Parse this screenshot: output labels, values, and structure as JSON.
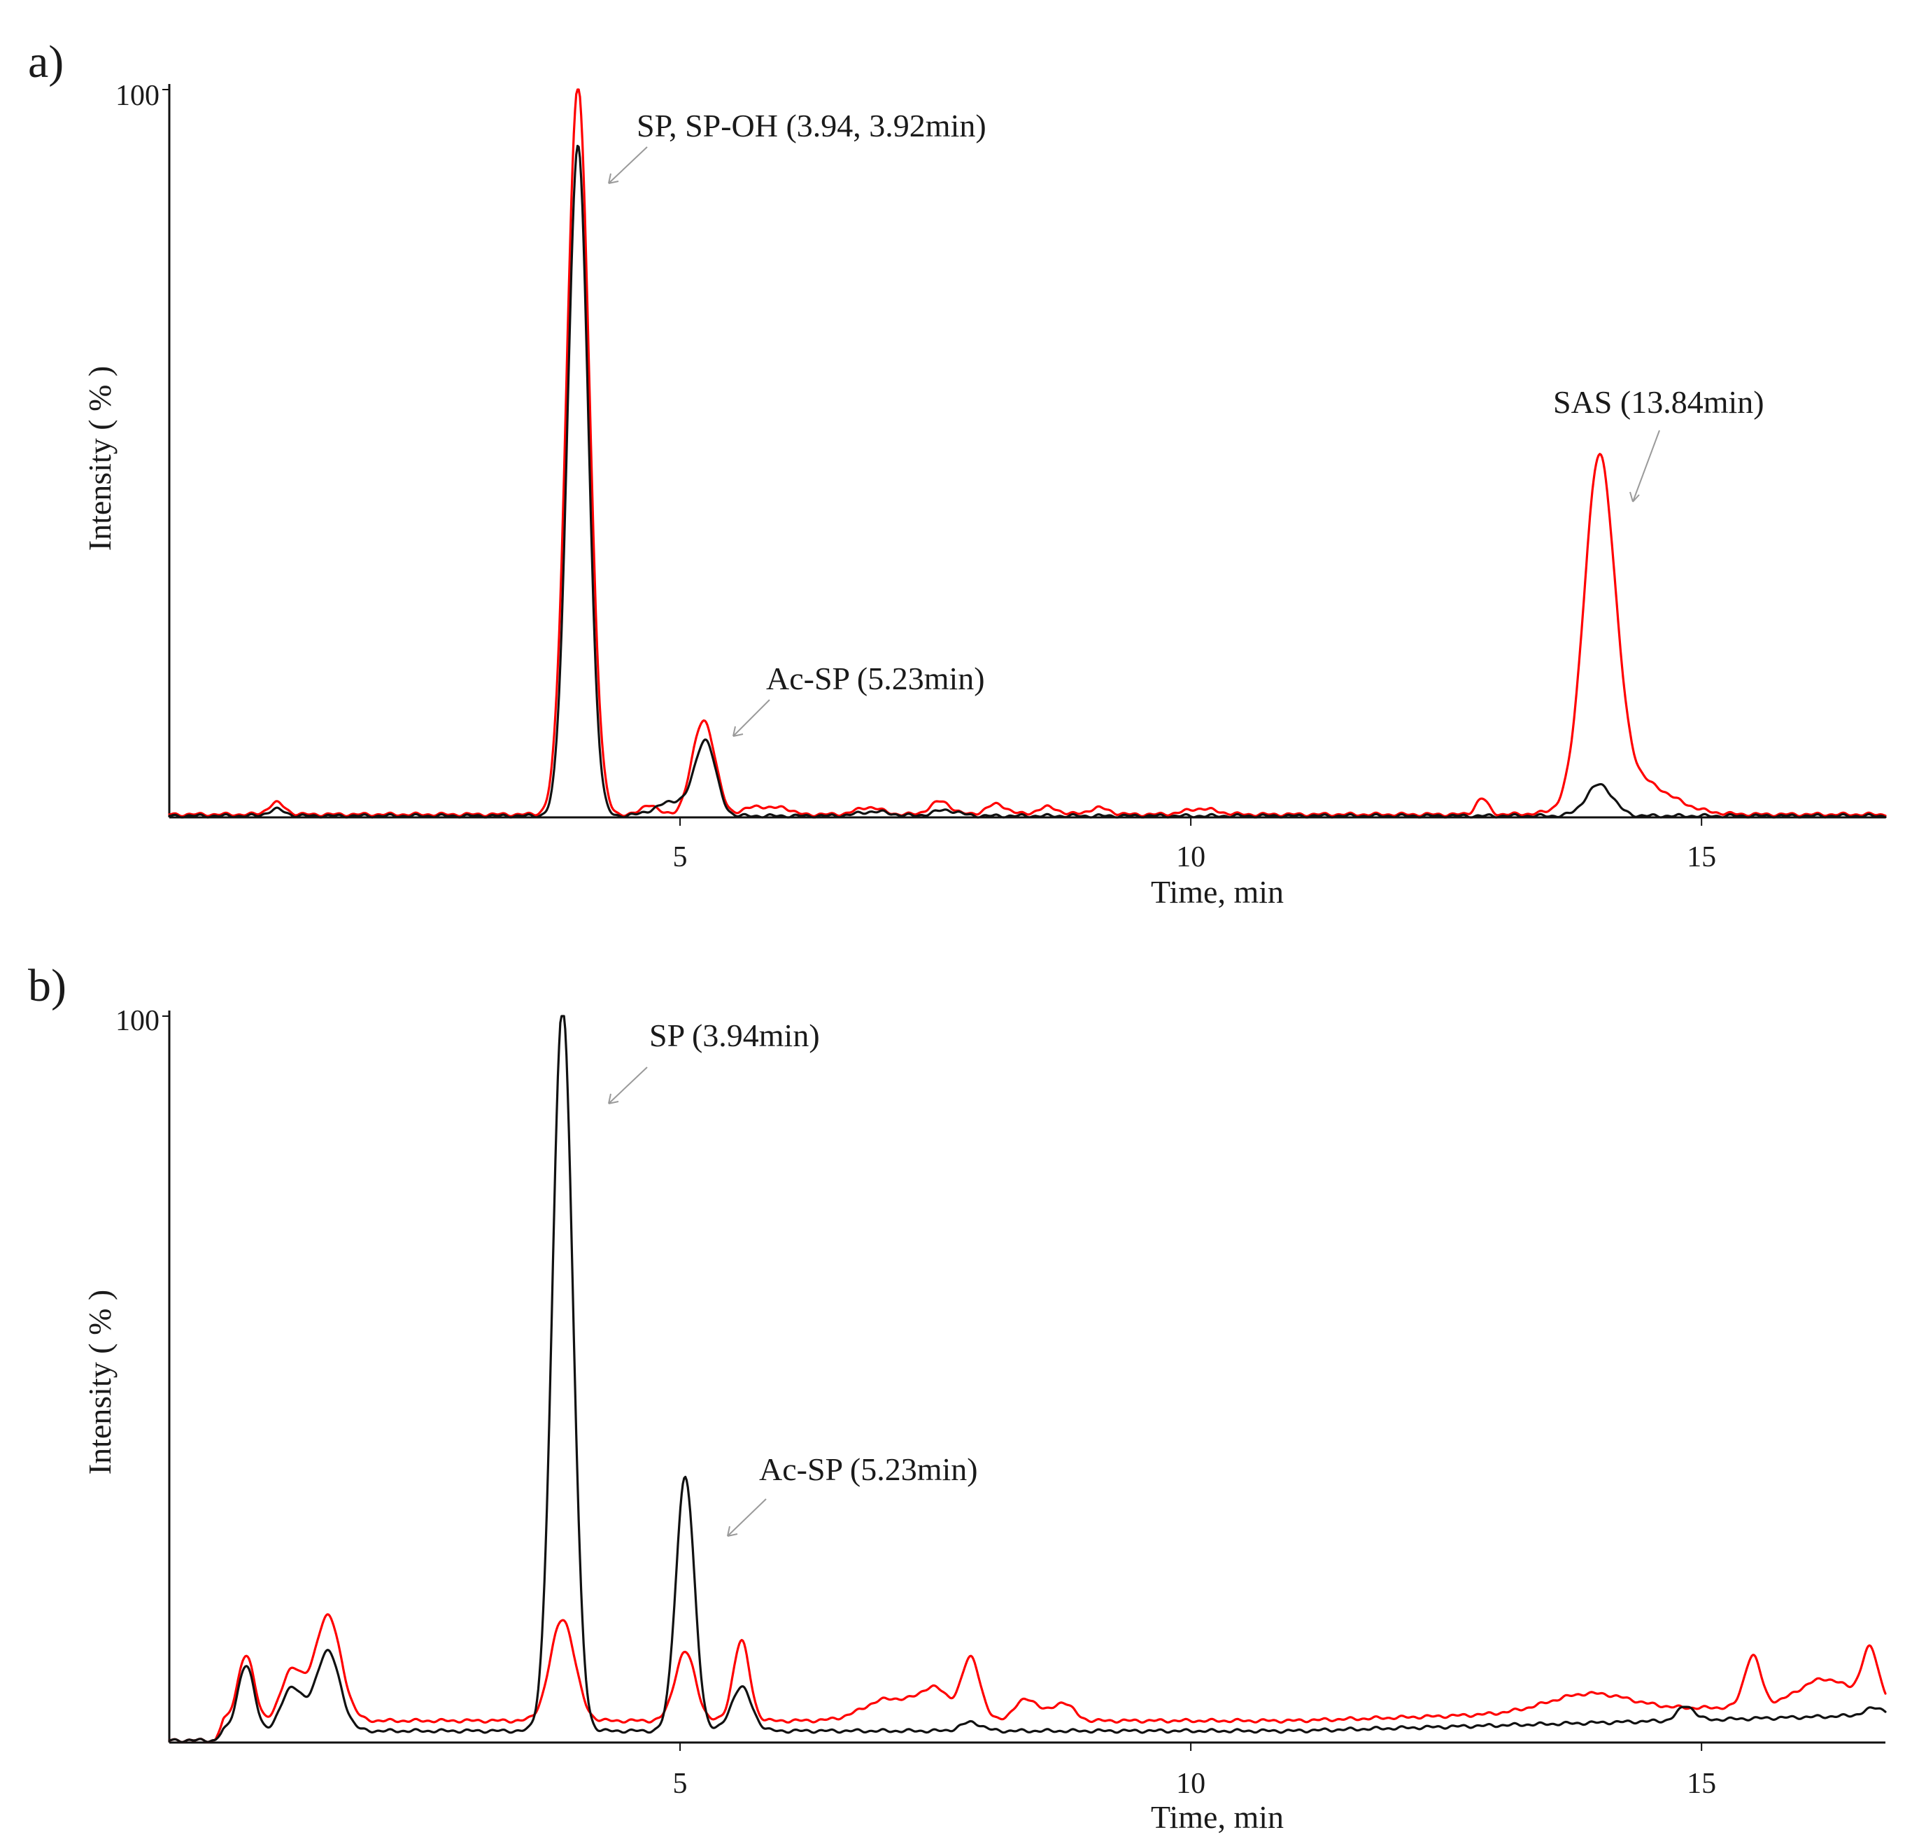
{
  "figure_colors": {
    "red_trace": "#ff0000",
    "black_trace": "#111111",
    "arrow": "#9a9a9a"
  },
  "chart_data": [
    {
      "panel": "a)",
      "type": "line",
      "xlabel": "Time, min",
      "ylabel": "Intensity ( % )",
      "xlim": [
        0,
        16.8
      ],
      "ylim": [
        0,
        100
      ],
      "xticks": [
        5,
        10,
        15
      ],
      "ytick_label": "100",
      "grid": false,
      "series": [
        {
          "color": "#ff0000",
          "peaks": [
            {
              "x": 1.05,
              "h": 1.6,
              "w": 0.08
            },
            {
              "x": 4.0,
              "h": 100,
              "w": 0.11
            },
            {
              "x": 4.7,
              "h": 1.4,
              "w": 0.07
            },
            {
              "x": 5.23,
              "h": 13,
              "w": 0.11
            },
            {
              "x": 5.75,
              "h": 1.2,
              "w": 0.1
            },
            {
              "x": 6.0,
              "h": 1.0,
              "w": 0.08
            },
            {
              "x": 6.85,
              "h": 1.0,
              "w": 0.12
            },
            {
              "x": 7.55,
              "h": 1.8,
              "w": 0.1
            },
            {
              "x": 8.1,
              "h": 1.4,
              "w": 0.1
            },
            {
              "x": 8.6,
              "h": 1.0,
              "w": 0.1
            },
            {
              "x": 9.1,
              "h": 0.9,
              "w": 0.1
            },
            {
              "x": 10.1,
              "h": 0.8,
              "w": 0.15
            },
            {
              "x": 12.85,
              "h": 2.2,
              "w": 0.06
            },
            {
              "x": 14.0,
              "h": 46,
              "w": 0.15
            },
            {
              "x": 14.3,
              "h": 5,
              "w": 0.35
            }
          ],
          "baseline": 0.4
        },
        {
          "color": "#111111",
          "peaks": [
            {
              "x": 1.05,
              "h": 0.9,
              "w": 0.08
            },
            {
              "x": 4.0,
              "h": 92,
              "w": 0.1
            },
            {
              "x": 4.95,
              "h": 2,
              "w": 0.18
            },
            {
              "x": 5.25,
              "h": 10,
              "w": 0.1
            },
            {
              "x": 6.9,
              "h": 0.6,
              "w": 0.15
            },
            {
              "x": 7.6,
              "h": 0.8,
              "w": 0.12
            },
            {
              "x": 14.0,
              "h": 4.3,
              "w": 0.13
            }
          ],
          "baseline": 0.2
        }
      ],
      "annotations": [
        {
          "text": "SP, SP-OH (3.94, 3.92min)",
          "x": 4.15,
          "y": 87
        },
        {
          "text": "Ac-SP (5.23min)",
          "x": 5.35,
          "y": 11
        },
        {
          "text": "SAS (13.84min)",
          "x": 14.3,
          "y": 43
        }
      ]
    },
    {
      "panel": "b)",
      "type": "line",
      "xlabel": "Time, min",
      "ylabel": "Intensity ( % )",
      "xlim": [
        0,
        16.8
      ],
      "ylim": [
        0,
        100
      ],
      "xticks": [
        5,
        10,
        15
      ],
      "ytick_label": "100",
      "grid": false,
      "series": [
        {
          "color": "#ff0000",
          "peaks": [
            {
              "x": 0.75,
              "h": 9,
              "w": 0.08
            },
            {
              "x": 1.2,
              "h": 7,
              "w": 0.1
            },
            {
              "x": 1.55,
              "h": 14.5,
              "w": 0.13
            },
            {
              "x": 3.85,
              "h": 14,
              "w": 0.12
            },
            {
              "x": 5.05,
              "h": 9.5,
              "w": 0.1
            },
            {
              "x": 5.6,
              "h": 11,
              "w": 0.08
            },
            {
              "x": 7.05,
              "h": 3,
              "w": 0.25
            },
            {
              "x": 7.5,
              "h": 4,
              "w": 0.15
            },
            {
              "x": 7.85,
              "h": 8.5,
              "w": 0.09
            },
            {
              "x": 8.4,
              "h": 3,
              "w": 0.12
            },
            {
              "x": 8.75,
              "h": 2.5,
              "w": 0.1
            },
            {
              "x": 13.9,
              "h": 2.5,
              "w": 0.4
            },
            {
              "x": 15.5,
              "h": 7,
              "w": 0.08
            },
            {
              "x": 16.2,
              "h": 3.5,
              "w": 0.25
            },
            {
              "x": 16.65,
              "h": 7,
              "w": 0.08
            }
          ],
          "baseline_start": 0.3,
          "baseline": 3.0,
          "baseline_end": 5.5
        },
        {
          "color": "#111111",
          "peaks": [
            {
              "x": 0.75,
              "h": 9,
              "w": 0.08
            },
            {
              "x": 1.2,
              "h": 6,
              "w": 0.1
            },
            {
              "x": 1.55,
              "h": 11,
              "w": 0.12
            },
            {
              "x": 3.85,
              "h": 100,
              "w": 0.1
            },
            {
              "x": 5.05,
              "h": 35,
              "w": 0.09
            },
            {
              "x": 5.6,
              "h": 6,
              "w": 0.1
            },
            {
              "x": 7.85,
              "h": 1.2,
              "w": 0.1
            },
            {
              "x": 14.85,
              "h": 2,
              "w": 0.08
            },
            {
              "x": 16.7,
              "h": 1,
              "w": 0.1
            }
          ],
          "baseline_start": 0.3,
          "baseline": 1.6,
          "baseline_end": 3.8
        }
      ],
      "annotations": [
        {
          "text": "SP (3.94min)",
          "x": 4.1,
          "y": 85
        },
        {
          "text": "Ac-SP (5.23min)",
          "x": 5.25,
          "y": 28
        }
      ]
    }
  ]
}
